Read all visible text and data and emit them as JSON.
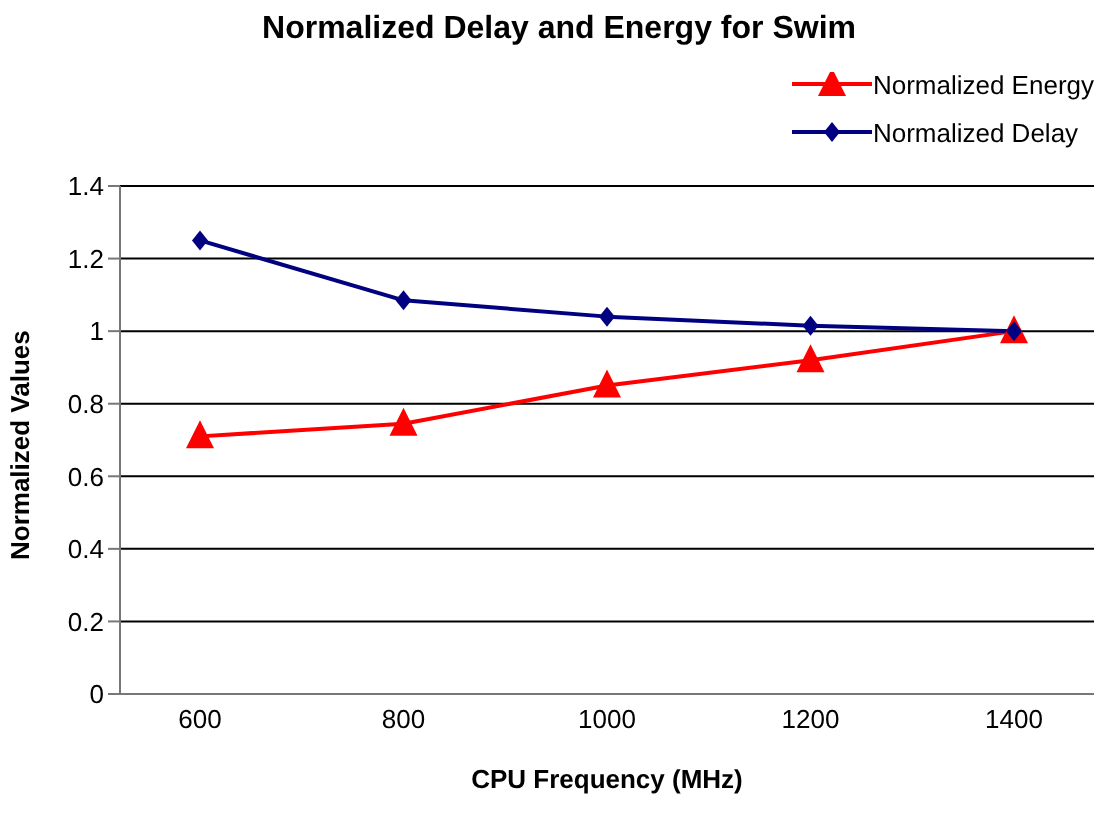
{
  "chart_data": {
    "type": "line",
    "title": "Normalized Delay and Energy for Swim",
    "xlabel": "CPU Frequency (MHz)",
    "ylabel": "Normalized Values",
    "categories": [
      "600",
      "800",
      "1000",
      "1200",
      "1400"
    ],
    "series": [
      {
        "name": "Normalized Energy",
        "color": "#ff0000",
        "marker": "triangle",
        "values": [
          0.71,
          0.745,
          0.85,
          0.92,
          1.0
        ]
      },
      {
        "name": "Normalized Delay",
        "color": "#000080",
        "marker": "diamond",
        "values": [
          1.25,
          1.085,
          1.04,
          1.015,
          1.0
        ]
      }
    ],
    "ylim": [
      0,
      1.4
    ],
    "yticks": [
      0,
      0.2,
      0.4,
      0.6,
      0.8,
      1,
      1.2,
      1.4
    ],
    "grid": "y",
    "legend": "top right"
  }
}
